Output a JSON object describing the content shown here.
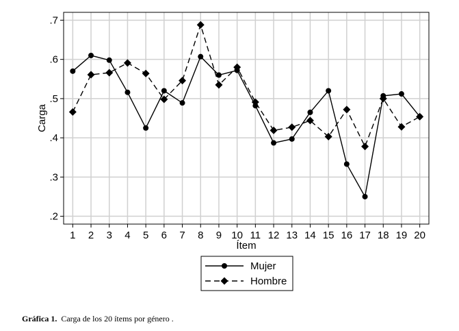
{
  "chart_data": {
    "type": "line",
    "xlabel": "Ítem",
    "ylabel": "Carga",
    "x": [
      1,
      2,
      3,
      4,
      5,
      6,
      7,
      8,
      9,
      10,
      11,
      12,
      13,
      14,
      15,
      16,
      17,
      18,
      19,
      20
    ],
    "x_tick_labels": [
      "1",
      "2",
      "3",
      "4",
      "5",
      "6",
      "7",
      "8",
      "9",
      "10",
      "11",
      "12",
      "13",
      "14",
      "15",
      "16",
      "17",
      "18",
      "19",
      "20"
    ],
    "y_ticks": [
      0.2,
      0.3,
      0.4,
      0.5,
      0.6,
      0.7
    ],
    "y_tick_labels": [
      ".2",
      ".3",
      ".4",
      ".5",
      ".6",
      ".7"
    ],
    "ylim": [
      0.18,
      0.72
    ],
    "xlim": [
      0.5,
      20.5
    ],
    "grid": true,
    "legend_position": "bottom-center",
    "series": [
      {
        "name": "Mujer",
        "marker": "circle",
        "line_style": "solid",
        "values": [
          0.57,
          0.61,
          0.598,
          0.516,
          0.425,
          0.52,
          0.489,
          0.607,
          0.56,
          0.572,
          0.482,
          0.387,
          0.397,
          0.465,
          0.52,
          0.333,
          0.25,
          0.507,
          0.512,
          0.454
        ]
      },
      {
        "name": "Hombre",
        "marker": "diamond",
        "line_style": "dashed",
        "values": [
          0.466,
          0.561,
          0.566,
          0.591,
          0.564,
          0.498,
          0.546,
          0.688,
          0.535,
          0.58,
          0.491,
          0.419,
          0.427,
          0.444,
          0.403,
          0.472,
          0.378,
          0.5,
          0.428,
          0.454
        ]
      }
    ]
  },
  "caption": {
    "label": "Gráfica 1.",
    "text": "Carga de los 20 ítems por género ."
  }
}
